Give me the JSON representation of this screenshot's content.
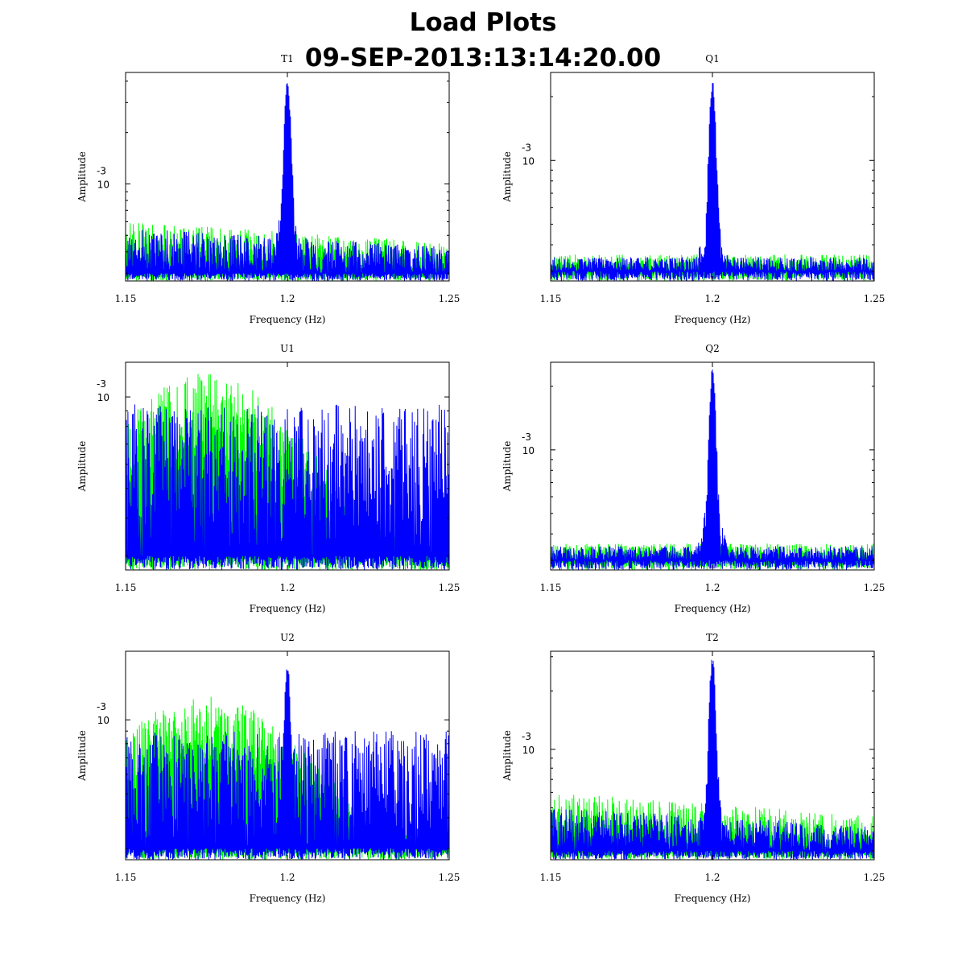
{
  "page": {
    "title_line1": "Load Plots",
    "title_line2": "09-SEP-2013:13:14:20.00"
  },
  "colors": {
    "series_a": "#0000ff",
    "series_b": "#00ff00",
    "axis": "#000000"
  },
  "chart_data": [
    {
      "type": "line",
      "title": "T1",
      "xlabel": "Frequency (Hz)",
      "ylabel": "Amplitude",
      "xlim": [
        1.15,
        1.25
      ],
      "xticks": [
        "1.15",
        "1.2",
        "1.25"
      ],
      "ytick_base": "10",
      "ytick_exp": "-3",
      "yscale": "log",
      "ylim": [
        0.00027,
        0.0045
      ],
      "ytick_value": 0.001,
      "series": [
        {
          "name": "blue",
          "color": "#0000ff",
          "peak_x": 1.2,
          "peak_y": 0.0043,
          "noise_floor": 0.0003,
          "noise_top": 0.00055
        },
        {
          "name": "green",
          "color": "#00ff00",
          "peak_x": 1.2,
          "peak_y": 0.00075,
          "noise_floor": 0.0003,
          "noise_top": 0.0006
        }
      ]
    },
    {
      "type": "line",
      "title": "Q1",
      "xlabel": "Frequency (Hz)",
      "ylabel": "Amplitude",
      "xlim": [
        1.15,
        1.25
      ],
      "xticks": [
        "1.15",
        "1.2",
        "1.25"
      ],
      "ytick_base": "10",
      "ytick_exp": "-3",
      "yscale": "log",
      "ylim": [
        0.00027,
        0.0026
      ],
      "ytick_value": 0.001,
      "series": [
        {
          "name": "blue",
          "color": "#0000ff",
          "peak_x": 1.2,
          "peak_y": 0.0025,
          "noise_floor": 0.0003,
          "noise_top": 0.00035
        },
        {
          "name": "green",
          "color": "#00ff00",
          "peak_x": 1.2,
          "peak_y": 0.00045,
          "noise_floor": 0.0003,
          "noise_top": 0.00036
        }
      ]
    },
    {
      "type": "line",
      "title": "U1",
      "xlabel": "Frequency (Hz)",
      "ylabel": "Amplitude",
      "xlim": [
        1.15,
        1.25
      ],
      "xticks": [
        "1.15",
        "1.2",
        "1.25"
      ],
      "ytick_base": "10",
      "ytick_exp": "-3",
      "yscale": "log",
      "ylim": [
        0.00027,
        0.0013
      ],
      "ytick_value": 0.001,
      "series": [
        {
          "name": "blue",
          "color": "#0000ff",
          "peak_x": 1.2,
          "peak_y": 0.0006,
          "noise_floor": 0.0003,
          "noise_top": 0.00095
        },
        {
          "name": "green",
          "color": "#00ff00",
          "peak_x": 1.175,
          "peak_y": 0.0012,
          "noise_floor": 0.0003,
          "noise_top": 0.0011
        }
      ]
    },
    {
      "type": "line",
      "title": "Q2",
      "xlabel": "Frequency (Hz)",
      "ylabel": "Amplitude",
      "xlim": [
        1.15,
        1.25
      ],
      "xticks": [
        "1.15",
        "1.2",
        "1.25"
      ],
      "ytick_base": "10",
      "ytick_exp": "-3",
      "yscale": "log",
      "ylim": [
        0.00027,
        0.0026
      ],
      "ytick_value": 0.001,
      "series": [
        {
          "name": "blue",
          "color": "#0000ff",
          "peak_x": 1.2,
          "peak_y": 0.0025,
          "noise_floor": 0.0003,
          "noise_top": 0.00035
        },
        {
          "name": "green",
          "color": "#00ff00",
          "peak_x": 1.2,
          "peak_y": 0.00045,
          "noise_floor": 0.0003,
          "noise_top": 0.00036
        }
      ]
    },
    {
      "type": "line",
      "title": "U2",
      "xlabel": "Frequency (Hz)",
      "ylabel": "Amplitude",
      "xlim": [
        1.15,
        1.25
      ],
      "xticks": [
        "1.15",
        "1.2",
        "1.25"
      ],
      "ytick_base": "10",
      "ytick_exp": "-3",
      "yscale": "log",
      "ylim": [
        0.00027,
        0.0019
      ],
      "ytick_value": 0.001,
      "series": [
        {
          "name": "blue",
          "color": "#0000ff",
          "peak_x": 1.2,
          "peak_y": 0.0018,
          "noise_floor": 0.0003,
          "noise_top": 0.0009
        },
        {
          "name": "green",
          "color": "#00ff00",
          "peak_x": 1.175,
          "peak_y": 0.00125,
          "noise_floor": 0.0003,
          "noise_top": 0.0011
        }
      ]
    },
    {
      "type": "line",
      "title": "T2",
      "xlabel": "Frequency (Hz)",
      "ylabel": "Amplitude",
      "xlim": [
        1.15,
        1.25
      ],
      "xticks": [
        "1.15",
        "1.2",
        "1.25"
      ],
      "ytick_base": "10",
      "ytick_exp": "-3",
      "yscale": "log",
      "ylim": [
        0.00027,
        0.0032
      ],
      "ytick_value": 0.001,
      "series": [
        {
          "name": "blue",
          "color": "#0000ff",
          "peak_x": 1.2,
          "peak_y": 0.0031,
          "noise_floor": 0.0003,
          "noise_top": 0.0005
        },
        {
          "name": "green",
          "color": "#00ff00",
          "peak_x": 1.2,
          "peak_y": 0.0007,
          "noise_floor": 0.0003,
          "noise_top": 0.0006
        }
      ]
    }
  ]
}
